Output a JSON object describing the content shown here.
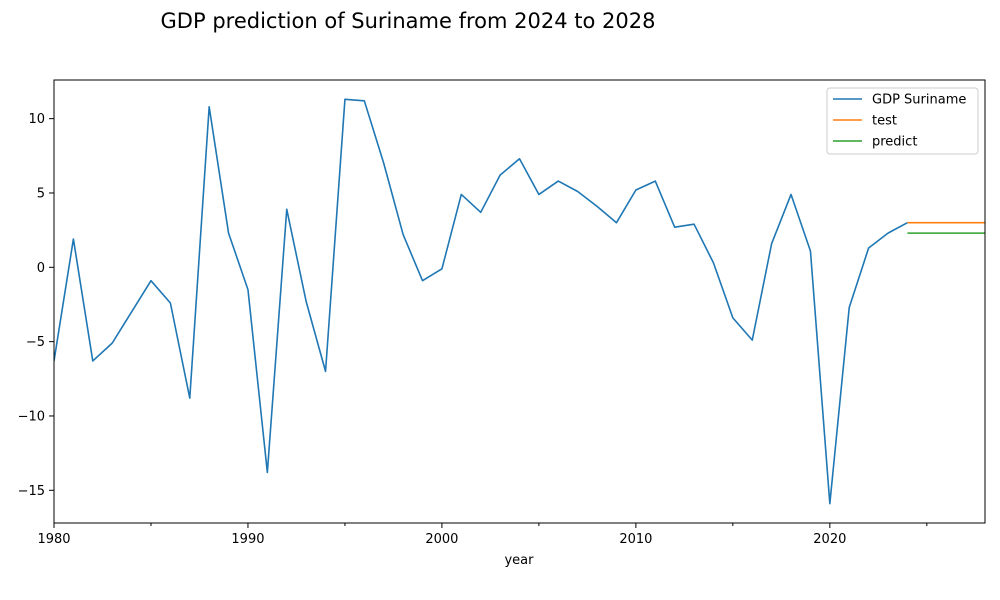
{
  "chart_data": {
    "type": "line",
    "title": "GDP prediction of Suriname from 2024 to 2028",
    "xlabel": "year",
    "ylabel": "",
    "xlim": [
      1980,
      2028
    ],
    "ylim": [
      -17.2,
      12.6
    ],
    "x_ticks": [
      1980,
      1990,
      2000,
      2010,
      2020
    ],
    "x_minor_ticks": [
      1985,
      1995,
      2005,
      2015,
      2025
    ],
    "y_ticks": [
      10,
      5,
      0,
      -5,
      -10,
      -15
    ],
    "grid": false,
    "legend_position": "top-right",
    "series": [
      {
        "name": "GDP Suriname",
        "color": "#1f77b4",
        "x": [
          1980,
          1981,
          1982,
          1983,
          1984,
          1985,
          1986,
          1987,
          1988,
          1989,
          1990,
          1991,
          1992,
          1993,
          1994,
          1995,
          1996,
          1997,
          1998,
          1999,
          2000,
          2001,
          2002,
          2003,
          2004,
          2005,
          2006,
          2007,
          2008,
          2009,
          2010,
          2011,
          2012,
          2013,
          2014,
          2015,
          2016,
          2017,
          2018,
          2019,
          2020,
          2021,
          2022,
          2023,
          2024
        ],
        "values": [
          -6.3,
          1.9,
          -6.3,
          -5.1,
          -3.0,
          -0.9,
          -2.4,
          -8.8,
          10.8,
          2.3,
          -1.5,
          -13.8,
          3.9,
          -2.3,
          -7.0,
          11.3,
          11.2,
          7.0,
          2.2,
          -0.9,
          -0.1,
          4.9,
          3.7,
          6.2,
          7.3,
          4.9,
          5.8,
          5.1,
          4.1,
          3.0,
          5.2,
          5.8,
          2.7,
          2.9,
          0.3,
          -3.4,
          -4.9,
          1.6,
          4.9,
          1.1,
          -15.9,
          -2.7,
          1.3,
          2.3,
          3.0
        ]
      },
      {
        "name": "test",
        "color": "#ff7f0e",
        "x": [
          2024,
          2028
        ],
        "values": [
          3.0,
          3.0
        ]
      },
      {
        "name": "predict",
        "color": "#2ca02c",
        "x": [
          2024,
          2028
        ],
        "values": [
          2.3,
          2.3
        ]
      }
    ]
  }
}
